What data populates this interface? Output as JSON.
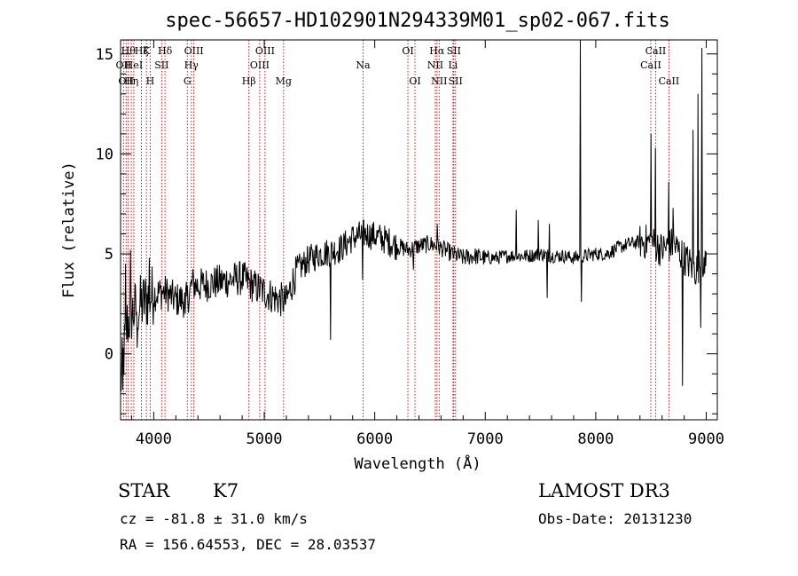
{
  "chart_data": {
    "type": "line",
    "title": "spec-56657-HD102901N294339M01_sp02-067.fits",
    "xlabel": "Wavelength (Å)",
    "ylabel": "Flux (relative)",
    "xlim": [
      3700,
      9100
    ],
    "ylim": [
      -3.3,
      15.7
    ],
    "x_ticks": [
      4000,
      5000,
      6000,
      7000,
      8000,
      9000
    ],
    "y_ticks": [
      0,
      5,
      10,
      15
    ],
    "anchors": [
      [
        3700,
        -1.5
      ],
      [
        3760,
        1.5
      ],
      [
        3800,
        2.0
      ],
      [
        3850,
        2.3
      ],
      [
        3900,
        2.5
      ],
      [
        3950,
        2.8
      ],
      [
        4000,
        3.0
      ],
      [
        4100,
        3.1
      ],
      [
        4200,
        2.7
      ],
      [
        4300,
        2.7
      ],
      [
        4350,
        3.5
      ],
      [
        4400,
        3.4
      ],
      [
        4500,
        3.5
      ],
      [
        4600,
        3.6
      ],
      [
        4700,
        3.7
      ],
      [
        4800,
        3.8
      ],
      [
        4900,
        3.4
      ],
      [
        5000,
        3.1
      ],
      [
        5100,
        2.8
      ],
      [
        5200,
        2.6
      ],
      [
        5250,
        3.5
      ],
      [
        5300,
        4.2
      ],
      [
        5400,
        4.7
      ],
      [
        5500,
        5.0
      ],
      [
        5600,
        5.1
      ],
      [
        5700,
        5.3
      ],
      [
        5800,
        5.8
      ],
      [
        5900,
        6.0
      ],
      [
        6000,
        5.9
      ],
      [
        6100,
        5.7
      ],
      [
        6200,
        5.4
      ],
      [
        6300,
        5.2
      ],
      [
        6400,
        5.4
      ],
      [
        6500,
        5.5
      ],
      [
        6600,
        5.3
      ],
      [
        6700,
        5.0
      ],
      [
        6800,
        4.8
      ],
      [
        6900,
        4.9
      ],
      [
        7000,
        4.8
      ],
      [
        7100,
        4.8
      ],
      [
        7200,
        4.9
      ],
      [
        7300,
        4.9
      ],
      [
        7400,
        4.9
      ],
      [
        7500,
        5.0
      ],
      [
        7600,
        4.9
      ],
      [
        7700,
        4.9
      ],
      [
        7800,
        4.8
      ],
      [
        7900,
        4.9
      ],
      [
        8000,
        5.0
      ],
      [
        8100,
        5.0
      ],
      [
        8200,
        5.3
      ],
      [
        8300,
        5.5
      ],
      [
        8400,
        5.6
      ],
      [
        8500,
        5.6
      ],
      [
        8600,
        5.2
      ],
      [
        8700,
        5.5
      ],
      [
        8800,
        4.8
      ],
      [
        8900,
        4.2
      ],
      [
        9000,
        4.8
      ]
    ],
    "spikes": [
      [
        3720,
        -1.8
      ],
      [
        3745,
        4.5
      ],
      [
        3790,
        5.2
      ],
      [
        3850,
        0.3
      ],
      [
        3960,
        4.8
      ],
      [
        4285,
        2.0
      ],
      [
        5600,
        0.7
      ],
      [
        5890,
        3.7
      ],
      [
        6350,
        4.2
      ],
      [
        6563,
        6.5
      ],
      [
        7280,
        7.2
      ],
      [
        7480,
        6.7
      ],
      [
        7560,
        2.8
      ],
      [
        7580,
        6.5
      ],
      [
        7860,
        15.7
      ],
      [
        7870,
        2.6
      ],
      [
        8498,
        11.0
      ],
      [
        8542,
        10.3
      ],
      [
        8662,
        8.6
      ],
      [
        8700,
        7.3
      ],
      [
        8783,
        -1.6
      ],
      [
        8880,
        11.2
      ],
      [
        8925,
        13.0
      ],
      [
        8950,
        1.3
      ],
      [
        8962,
        15.3
      ],
      [
        8985,
        4.0
      ]
    ],
    "spectral_lines": [
      {
        "wavelength": 3727,
        "label": "OII",
        "row": 1
      },
      {
        "wavelength": 3750,
        "label": "OII",
        "row": 2
      },
      {
        "wavelength": 3770,
        "label": "Hθ",
        "row": 0
      },
      {
        "wavelength": 3797,
        "label": "Hη",
        "row": 2
      },
      {
        "wavelength": 3820,
        "label": "HeI",
        "row": 1
      },
      {
        "wavelength": 3889,
        "label": "Hζ",
        "row": 0
      },
      {
        "wavelength": 3934,
        "label": "K",
        "row": 0
      },
      {
        "wavelength": 3968,
        "label": "H",
        "row": 2
      },
      {
        "wavelength": 4072,
        "label": "SII",
        "row": 1
      },
      {
        "wavelength": 4102,
        "label": "Hδ",
        "row": 0
      },
      {
        "wavelength": 4304,
        "label": "G",
        "row": 2
      },
      {
        "wavelength": 4340,
        "label": "Hγ",
        "row": 1
      },
      {
        "wavelength": 4363,
        "label": "OIII",
        "row": 0
      },
      {
        "wavelength": 4861,
        "label": "Hβ",
        "row": 2
      },
      {
        "wavelength": 4959,
        "label": "OIII",
        "row": 1
      },
      {
        "wavelength": 5007,
        "label": "OIII",
        "row": 0
      },
      {
        "wavelength": 5175,
        "label": "Mg",
        "row": 2
      },
      {
        "wavelength": 5894,
        "label": "Na",
        "row": 1
      },
      {
        "wavelength": 6300,
        "label": "OI",
        "row": 0
      },
      {
        "wavelength": 6364,
        "label": "OI",
        "row": 2
      },
      {
        "wavelength": 6548,
        "label": "NII",
        "row": 1
      },
      {
        "wavelength": 6563,
        "label": "Hα",
        "row": 0
      },
      {
        "wavelength": 6583,
        "label": "NII",
        "row": 2
      },
      {
        "wavelength": 6708,
        "label": "Li",
        "row": 1
      },
      {
        "wavelength": 6716,
        "label": "SII",
        "row": 0
      },
      {
        "wavelength": 6731,
        "label": "SII",
        "row": 2
      },
      {
        "wavelength": 8498,
        "label": "CaII",
        "row": 1
      },
      {
        "wavelength": 8542,
        "label": "CaII",
        "row": 0
      },
      {
        "wavelength": 8662,
        "label": "CaII",
        "row": 2
      }
    ]
  },
  "info": {
    "class": "STAR",
    "subclass": "K7",
    "survey": "LAMOST DR3",
    "redshift": "cz = -81.8 ± 31.0 km/s",
    "obs_date": "Obs-Date: 20131230",
    "coords": "RA = 156.64553, DEC =  28.03537"
  },
  "colors": {
    "line": "#000000",
    "marker": "#cc0000",
    "text": "#000000"
  }
}
